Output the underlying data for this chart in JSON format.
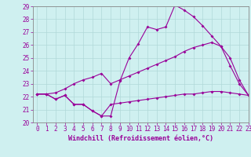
{
  "xlabel": "Windchill (Refroidissement éolien,°C)",
  "background_color": "#cff0f0",
  "grid_color": "#b0d8d8",
  "line_color": "#990099",
  "spine_color": "#888888",
  "x_hours": [
    0,
    1,
    2,
    3,
    4,
    5,
    6,
    7,
    8,
    9,
    10,
    11,
    12,
    13,
    14,
    15,
    16,
    17,
    18,
    19,
    20,
    21,
    22,
    23
  ],
  "line1_y": [
    22.2,
    22.2,
    21.8,
    22.1,
    21.4,
    21.4,
    20.9,
    20.5,
    20.5,
    23.2,
    25.0,
    26.1,
    27.4,
    27.2,
    27.4,
    29.1,
    28.7,
    28.2,
    27.5,
    26.7,
    25.9,
    24.4,
    23.0,
    22.1
  ],
  "line2_y": [
    22.2,
    22.2,
    21.8,
    22.1,
    21.4,
    21.4,
    20.9,
    20.5,
    21.4,
    21.5,
    21.6,
    21.7,
    21.8,
    21.9,
    22.0,
    22.1,
    22.2,
    22.2,
    22.3,
    22.4,
    22.4,
    22.3,
    22.2,
    22.1
  ],
  "line3_y": [
    22.2,
    22.2,
    22.3,
    22.6,
    23.0,
    23.3,
    23.5,
    23.8,
    23.0,
    23.3,
    23.6,
    23.9,
    24.2,
    24.5,
    24.8,
    25.1,
    25.5,
    25.8,
    26.0,
    26.2,
    25.9,
    25.0,
    23.3,
    22.1
  ],
  "ylim": [
    20,
    29
  ],
  "xlim": [
    -0.5,
    23
  ],
  "yticks": [
    20,
    21,
    22,
    23,
    24,
    25,
    26,
    27,
    28,
    29
  ],
  "xticks": [
    0,
    1,
    2,
    3,
    4,
    5,
    6,
    7,
    8,
    9,
    10,
    11,
    12,
    13,
    14,
    15,
    16,
    17,
    18,
    19,
    20,
    21,
    22,
    23
  ],
  "fontsize_label": 6.0,
  "fontsize_tick": 5.5
}
